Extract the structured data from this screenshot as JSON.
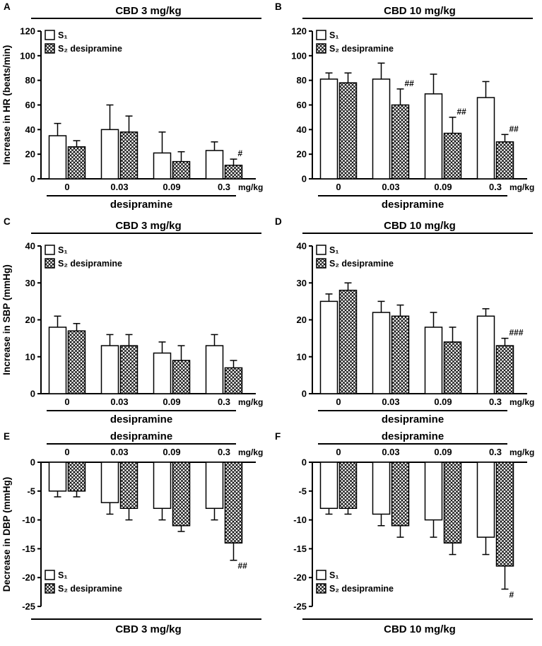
{
  "figure": {
    "description": "Six-panel bar chart figure, effects of CBD and desipramine",
    "colors": {
      "bar_fill": "#ffffff",
      "hatch_line": "#000000",
      "text": "#000000",
      "axis": "#000000"
    }
  },
  "chart_data": [
    {
      "type": "bar",
      "letter": "A",
      "title": "CBD 3 mg/kg",
      "direction": "up",
      "ylabel": "Increase in HR (beats/min)",
      "ylim": [
        0,
        120
      ],
      "yticks": [
        0,
        20,
        40,
        60,
        80,
        100,
        120
      ],
      "categories": [
        "0",
        "0.03",
        "0.09",
        "0.3"
      ],
      "xunit": "mg/kg",
      "xlabel": "desipramine",
      "legend_position": "top-left",
      "series": [
        {
          "name": "S₁",
          "fill": "white",
          "values": [
            35,
            40,
            21,
            23
          ],
          "errors": [
            10,
            20,
            17,
            7
          ],
          "annotations": [
            "",
            "",
            "",
            ""
          ]
        },
        {
          "name": "S₂ desipramine",
          "fill": "hatch",
          "values": [
            26,
            38,
            14,
            11
          ],
          "errors": [
            5,
            13,
            8,
            5
          ],
          "annotations": [
            "",
            "",
            "",
            "#"
          ]
        }
      ]
    },
    {
      "type": "bar",
      "letter": "B",
      "title": "CBD 10 mg/kg",
      "direction": "up",
      "ylabel": "",
      "ylim": [
        0,
        120
      ],
      "yticks": [
        0,
        20,
        40,
        60,
        80,
        100,
        120
      ],
      "categories": [
        "0",
        "0.03",
        "0.09",
        "0.3"
      ],
      "xunit": "mg/kg",
      "xlabel": "desipramine",
      "legend_position": "top-left",
      "series": [
        {
          "name": "S₁",
          "fill": "white",
          "values": [
            81,
            81,
            69,
            66
          ],
          "errors": [
            5,
            13,
            16,
            13
          ],
          "annotations": [
            "",
            "",
            "",
            ""
          ]
        },
        {
          "name": "S₂ desipramine",
          "fill": "hatch",
          "values": [
            78,
            60,
            37,
            30
          ],
          "errors": [
            8,
            13,
            13,
            6
          ],
          "annotations": [
            "",
            "##",
            "##",
            "##"
          ]
        }
      ]
    },
    {
      "type": "bar",
      "letter": "C",
      "title": "CBD 3 mg/kg",
      "direction": "up",
      "ylabel": "Increase in SBP (mmHg)",
      "ylim": [
        0,
        40
      ],
      "yticks": [
        0,
        10,
        20,
        30,
        40
      ],
      "categories": [
        "0",
        "0.03",
        "0.09",
        "0.3"
      ],
      "xunit": "mg/kg",
      "xlabel": "desipramine",
      "legend_position": "top-left",
      "series": [
        {
          "name": "S₁",
          "fill": "white",
          "values": [
            18,
            13,
            11,
            13
          ],
          "errors": [
            3,
            3,
            3,
            3
          ],
          "annotations": [
            "",
            "",
            "",
            ""
          ]
        },
        {
          "name": "S₂ desipramine",
          "fill": "hatch",
          "values": [
            17,
            13,
            9,
            7
          ],
          "errors": [
            2,
            3,
            4,
            2
          ],
          "annotations": [
            "",
            "",
            "",
            ""
          ]
        }
      ]
    },
    {
      "type": "bar",
      "letter": "D",
      "title": "CBD 10 mg/kg",
      "direction": "up",
      "ylabel": "",
      "ylim": [
        0,
        40
      ],
      "yticks": [
        0,
        10,
        20,
        30,
        40
      ],
      "categories": [
        "0",
        "0.03",
        "0.09",
        "0.3"
      ],
      "xunit": "mg/kg",
      "xlabel": "desipramine",
      "legend_position": "top-left",
      "series": [
        {
          "name": "S₁",
          "fill": "white",
          "values": [
            25,
            22,
            18,
            21
          ],
          "errors": [
            2,
            3,
            4,
            2
          ],
          "annotations": [
            "",
            "",
            "",
            ""
          ]
        },
        {
          "name": "S₂ desipramine",
          "fill": "hatch",
          "values": [
            28,
            21,
            14,
            13
          ],
          "errors": [
            2,
            3,
            4,
            2
          ],
          "annotations": [
            "",
            "",
            "",
            "###"
          ]
        }
      ]
    },
    {
      "type": "bar",
      "letter": "E",
      "title": "CBD 3 mg/kg",
      "direction": "down",
      "ylabel": "Decrease in DBP (mmHg)",
      "ylim": [
        0,
        -25
      ],
      "yticks": [
        0,
        -5,
        -10,
        -15,
        -20,
        -25
      ],
      "categories": [
        "0",
        "0.03",
        "0.09",
        "0.3"
      ],
      "xunit": "mg/kg",
      "xlabel": "desipramine",
      "legend_position": "bottom-left",
      "series": [
        {
          "name": "S₁",
          "fill": "white",
          "values": [
            -5,
            -7,
            -8,
            -8
          ],
          "errors": [
            1,
            2,
            2,
            2
          ],
          "annotations": [
            "",
            "",
            "",
            ""
          ]
        },
        {
          "name": "S₂ desipramine",
          "fill": "hatch",
          "values": [
            -5,
            -8,
            -11,
            -14
          ],
          "errors": [
            1,
            2,
            1,
            3
          ],
          "annotations": [
            "",
            "",
            "",
            "##"
          ]
        }
      ]
    },
    {
      "type": "bar",
      "letter": "F",
      "title": "CBD 10 mg/kg",
      "direction": "down",
      "ylabel": "",
      "ylim": [
        0,
        -25
      ],
      "yticks": [
        0,
        -5,
        -10,
        -15,
        -20,
        -25
      ],
      "categories": [
        "0",
        "0.03",
        "0.09",
        "0.3"
      ],
      "xunit": "mg/kg",
      "xlabel": "desipramine",
      "legend_position": "bottom-left",
      "series": [
        {
          "name": "S₁",
          "fill": "white",
          "values": [
            -8,
            -9,
            -10,
            -13
          ],
          "errors": [
            1,
            2,
            3,
            3
          ],
          "annotations": [
            "",
            "",
            "",
            ""
          ]
        },
        {
          "name": "S₂ desipramine",
          "fill": "hatch",
          "values": [
            -8,
            -11,
            -14,
            -18
          ],
          "errors": [
            1,
            2,
            2,
            4
          ],
          "annotations": [
            "",
            "",
            "",
            "#"
          ]
        }
      ]
    }
  ]
}
